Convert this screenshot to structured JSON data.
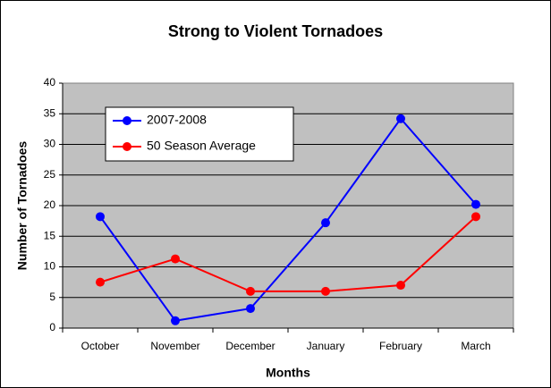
{
  "chart_data": {
    "type": "line",
    "title": "Strong to Violent Tornadoes",
    "x_label": "Months",
    "y_label": "Number of Tornadoes",
    "categories": [
      "October",
      "November",
      "December",
      "January",
      "February",
      "March"
    ],
    "series": [
      {
        "name": "2007-2008",
        "color": "#0000ff",
        "values": [
          18.2,
          1.2,
          3.2,
          17.2,
          34.2,
          20.2
        ]
      },
      {
        "name": "50 Season Average",
        "color": "#ff0000",
        "values": [
          7.5,
          11.3,
          6,
          6,
          7,
          18.2
        ]
      }
    ],
    "ylim": [
      0,
      40
    ],
    "yticks": [
      0,
      5,
      10,
      15,
      20,
      25,
      30,
      35,
      40
    ],
    "grid": true,
    "legend": "upper left"
  }
}
